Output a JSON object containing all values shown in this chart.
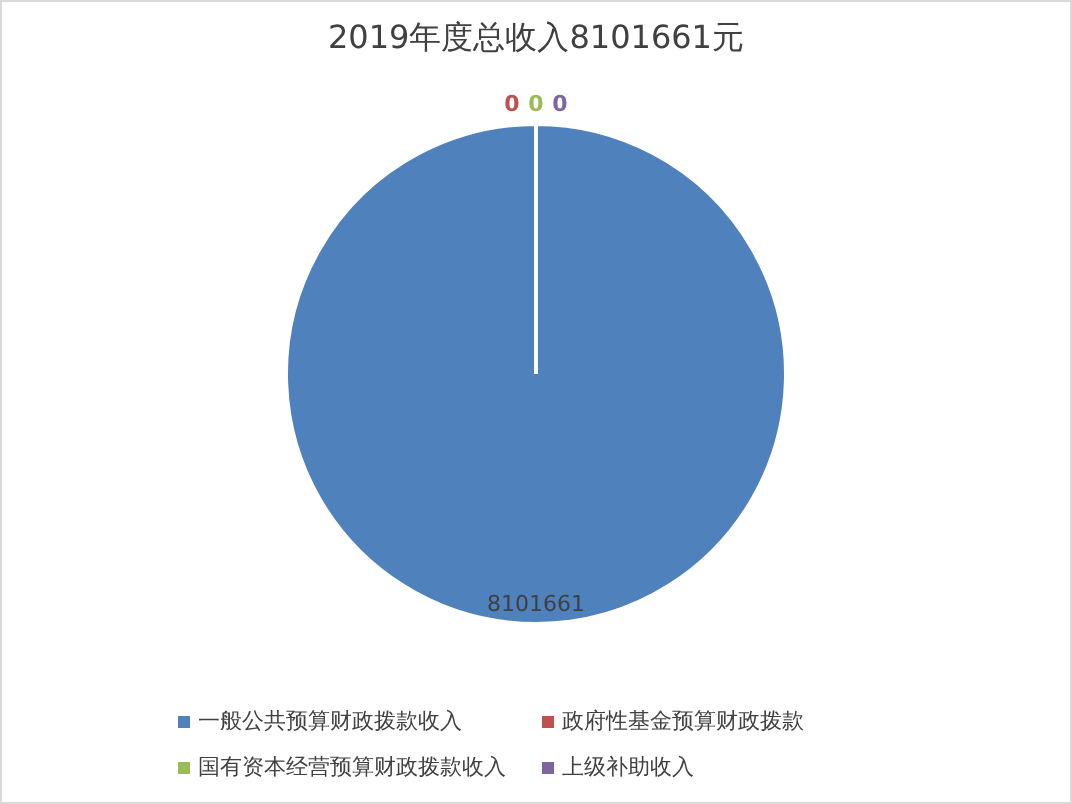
{
  "chart_data": {
    "type": "pie",
    "title": "2019年度总收入8101661元",
    "categories": [
      "一般公共预算财政拨款收入",
      "政府性基金预算财政拨款",
      "国有资本经营预算财政拨款收入",
      "上级补助收入"
    ],
    "values": [
      8101661,
      0,
      0,
      0
    ],
    "colors": [
      "#4f81bd",
      "#c0504d",
      "#9bbb59",
      "#8064a2"
    ],
    "value_labels": [
      "8101661",
      "0",
      "0",
      "0"
    ],
    "legend": "bottom"
  }
}
